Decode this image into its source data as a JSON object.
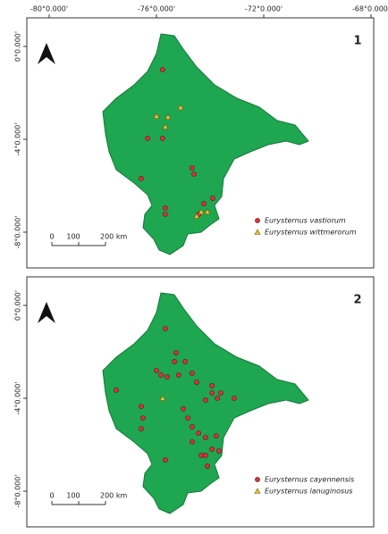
{
  "map": {
    "lon_ticks": [
      {
        "value": -80,
        "label": "-80°0.000'"
      },
      {
        "value": -76,
        "label": "-76°0.000'"
      },
      {
        "value": -72,
        "label": "-72°0.000'"
      },
      {
        "value": -68,
        "label": "-68°0.000'"
      }
    ],
    "lat_ticks": [
      {
        "value": 0,
        "label": "0°0.000'"
      },
      {
        "value": -4,
        "label": "-4°0.000'"
      },
      {
        "value": -8,
        "label": "-8°0.000'"
      }
    ],
    "scale_bar": [
      "0",
      "100",
      "200 km"
    ],
    "panels": [
      {
        "number": "1",
        "species": [
          {
            "name": "Eurysternus vastiorum",
            "marker": "circle",
            "color": "#d9303c",
            "lon": [
              -75.77,
              -76.33,
              -75.77,
              -74.67,
              -74.6,
              -76.57,
              -73.9,
              -74.23,
              -75.67,
              -75.67,
              -74.43
            ],
            "lat": [
              -1.0,
              -3.96,
              -3.96,
              -5.23,
              -5.5,
              -5.69,
              -6.54,
              -6.77,
              -6.96,
              -7.23,
              -7.23
            ]
          },
          {
            "name": "Eurysternus wittmerorum",
            "marker": "triangle",
            "color": "#e8c23a",
            "lon": [
              -76.0,
              -75.57,
              -75.1,
              -75.67,
              -74.33,
              -74.1,
              -74.5
            ],
            "lat": [
              -3.0,
              -3.04,
              -2.62,
              -3.46,
              -7.12,
              -7.12,
              -7.31
            ]
          }
        ]
      },
      {
        "number": "2",
        "species": [
          {
            "name": "Eurysternus cayennensis",
            "marker": "circle",
            "color": "#d9303c",
            "lon": [
              -75.67,
              -75.27,
              -74.93,
              -75.33,
              -76.0,
              -75.83,
              -75.6,
              -75.17,
              -74.67,
              -74.5,
              -73.93,
              -73.6,
              -73.73,
              -73.93,
              -74.17,
              -73.1,
              -77.5,
              -76.57,
              -76.5,
              -76.57,
              -75.0,
              -74.83,
              -74.67,
              -74.17,
              -73.77,
              -74.43,
              -74.67,
              -74.33,
              -74.17,
              -73.93,
              -73.67,
              -75.67,
              -74.1
            ],
            "lat": [
              -1.0,
              -2.04,
              -2.42,
              -2.42,
              -2.81,
              -3.0,
              -3.08,
              -3.0,
              -2.92,
              -3.31,
              -3.46,
              -3.77,
              -4.0,
              -3.77,
              -4.08,
              -4.0,
              -3.65,
              -4.35,
              -4.85,
              -5.31,
              -4.46,
              -4.85,
              -5.23,
              -5.69,
              -5.62,
              -5.5,
              -5.88,
              -6.46,
              -6.46,
              -6.19,
              -6.27,
              -6.65,
              -6.92
            ]
          },
          {
            "name": "Eurysternus lanuginosus",
            "marker": "triangle",
            "color": "#e8c23a",
            "lon": [
              -75.77
            ],
            "lat": [
              -4.0
            ]
          }
        ]
      }
    ]
  }
}
